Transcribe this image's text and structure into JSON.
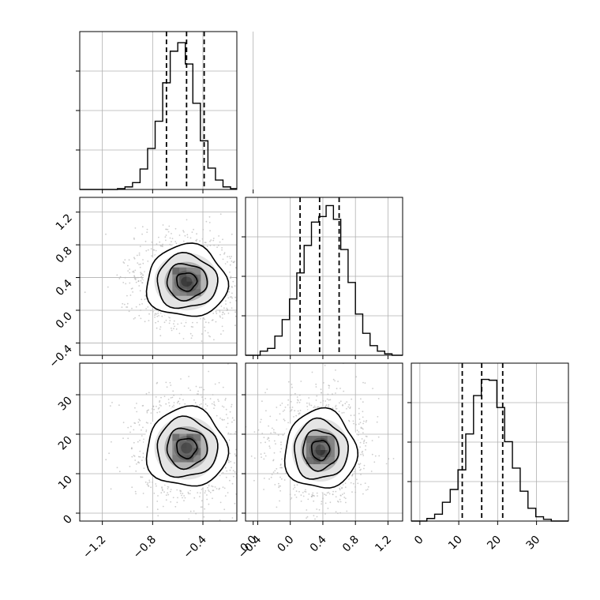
{
  "chart_data": {
    "type": "corner",
    "grid": true,
    "parameters": 3,
    "tick_labels": {
      "p1": [
        "−1.2",
        "−0.8",
        "−0.4",
        "0.0"
      ],
      "p2_x": [
        "−0.4",
        "0.0",
        "0.4",
        "0.8",
        "1.2"
      ],
      "p2_y": [
        "−0.4",
        "0.0",
        "0.4",
        "0.8",
        "1.2"
      ],
      "p3_x": [
        "0",
        "10",
        "20",
        "30"
      ],
      "p3_y": [
        "0",
        "10",
        "20",
        "30"
      ]
    },
    "panels": [
      {
        "id": "hist-p1",
        "type": "histogram",
        "row": 0,
        "col": 0,
        "xlim": [
          -1.38,
          -0.13
        ],
        "ylim": [
          0,
          185
        ],
        "bins": [
          -1.38,
          -1.32,
          -1.26,
          -1.2,
          -1.14,
          -1.08,
          -1.02,
          -0.96,
          -0.9,
          -0.84,
          -0.78,
          -0.72,
          -0.66,
          -0.6,
          -0.54,
          -0.48,
          -0.42,
          -0.36,
          -0.3,
          -0.24,
          -0.18,
          -0.13
        ],
        "counts": [
          0,
          0,
          0,
          0,
          0,
          1,
          3,
          8,
          24,
          48,
          80,
          125,
          162,
          172,
          147,
          101,
          57,
          25,
          11,
          3,
          1
        ],
        "quantile_lines": [
          -0.69,
          -0.53,
          -0.39
        ]
      },
      {
        "id": "scatter-p1-p2",
        "type": "2d-density",
        "row": 1,
        "col": 0,
        "xlim": [
          -1.38,
          -0.13
        ],
        "ylim": [
          -0.55,
          1.38
        ],
        "center": [
          -0.53,
          0.35
        ],
        "sigma": [
          0.16,
          0.22
        ],
        "contour_levels": [
          "0.5",
          "1.0",
          "1.5",
          "2.0"
        ]
      },
      {
        "id": "hist-p2",
        "type": "histogram",
        "row": 1,
        "col": 1,
        "xlim": [
          -0.55,
          1.38
        ],
        "ylim": [
          0,
          115
        ],
        "bins": [
          -0.55,
          -0.46,
          -0.37,
          -0.28,
          -0.19,
          -0.1,
          -0.01,
          0.08,
          0.17,
          0.26,
          0.35,
          0.44,
          0.53,
          0.62,
          0.71,
          0.8,
          0.89,
          0.98,
          1.07,
          1.16,
          1.25,
          1.38
        ],
        "counts": [
          0,
          0,
          3,
          5,
          14,
          26,
          41,
          60,
          80,
          97,
          101,
          109,
          99,
          77,
          53,
          30,
          16,
          7,
          3,
          1,
          0
        ],
        "quantile_lines": [
          0.12,
          0.36,
          0.6
        ]
      },
      {
        "id": "scatter-p1-p3",
        "type": "2d-density",
        "row": 2,
        "col": 0,
        "xlim": [
          -1.38,
          -0.13
        ],
        "ylim": [
          -2,
          38
        ],
        "center": [
          -0.53,
          16.5
        ],
        "sigma": [
          0.16,
          5.0
        ],
        "contour_levels": [
          "0.5",
          "1.0",
          "1.5",
          "2.0"
        ]
      },
      {
        "id": "scatter-p2-p3",
        "type": "2d-density",
        "row": 2,
        "col": 1,
        "xlim": [
          -0.55,
          1.38
        ],
        "ylim": [
          -2,
          38
        ],
        "center": [
          0.37,
          16.0
        ],
        "sigma": [
          0.22,
          5.0
        ],
        "contour_levels": [
          "0.5",
          "1.0",
          "1.5",
          "2.0"
        ]
      },
      {
        "id": "hist-p3",
        "type": "histogram",
        "row": 2,
        "col": 2,
        "xlim": [
          -2.2,
          38.2
        ],
        "ylim": [
          0,
          185
        ],
        "bins": [
          -2.2,
          -0.2,
          1.8,
          3.8,
          5.8,
          7.8,
          9.8,
          11.8,
          13.8,
          15.8,
          17.8,
          19.8,
          21.8,
          23.8,
          25.8,
          27.8,
          29.8,
          31.8,
          33.8,
          35.8,
          38.2
        ],
        "counts": [
          0,
          0,
          3,
          8,
          22,
          37,
          60,
          102,
          147,
          166,
          165,
          133,
          93,
          62,
          35,
          15,
          5,
          2,
          0,
          0
        ],
        "quantile_lines": [
          10.9,
          15.9,
          21.3
        ]
      }
    ]
  }
}
